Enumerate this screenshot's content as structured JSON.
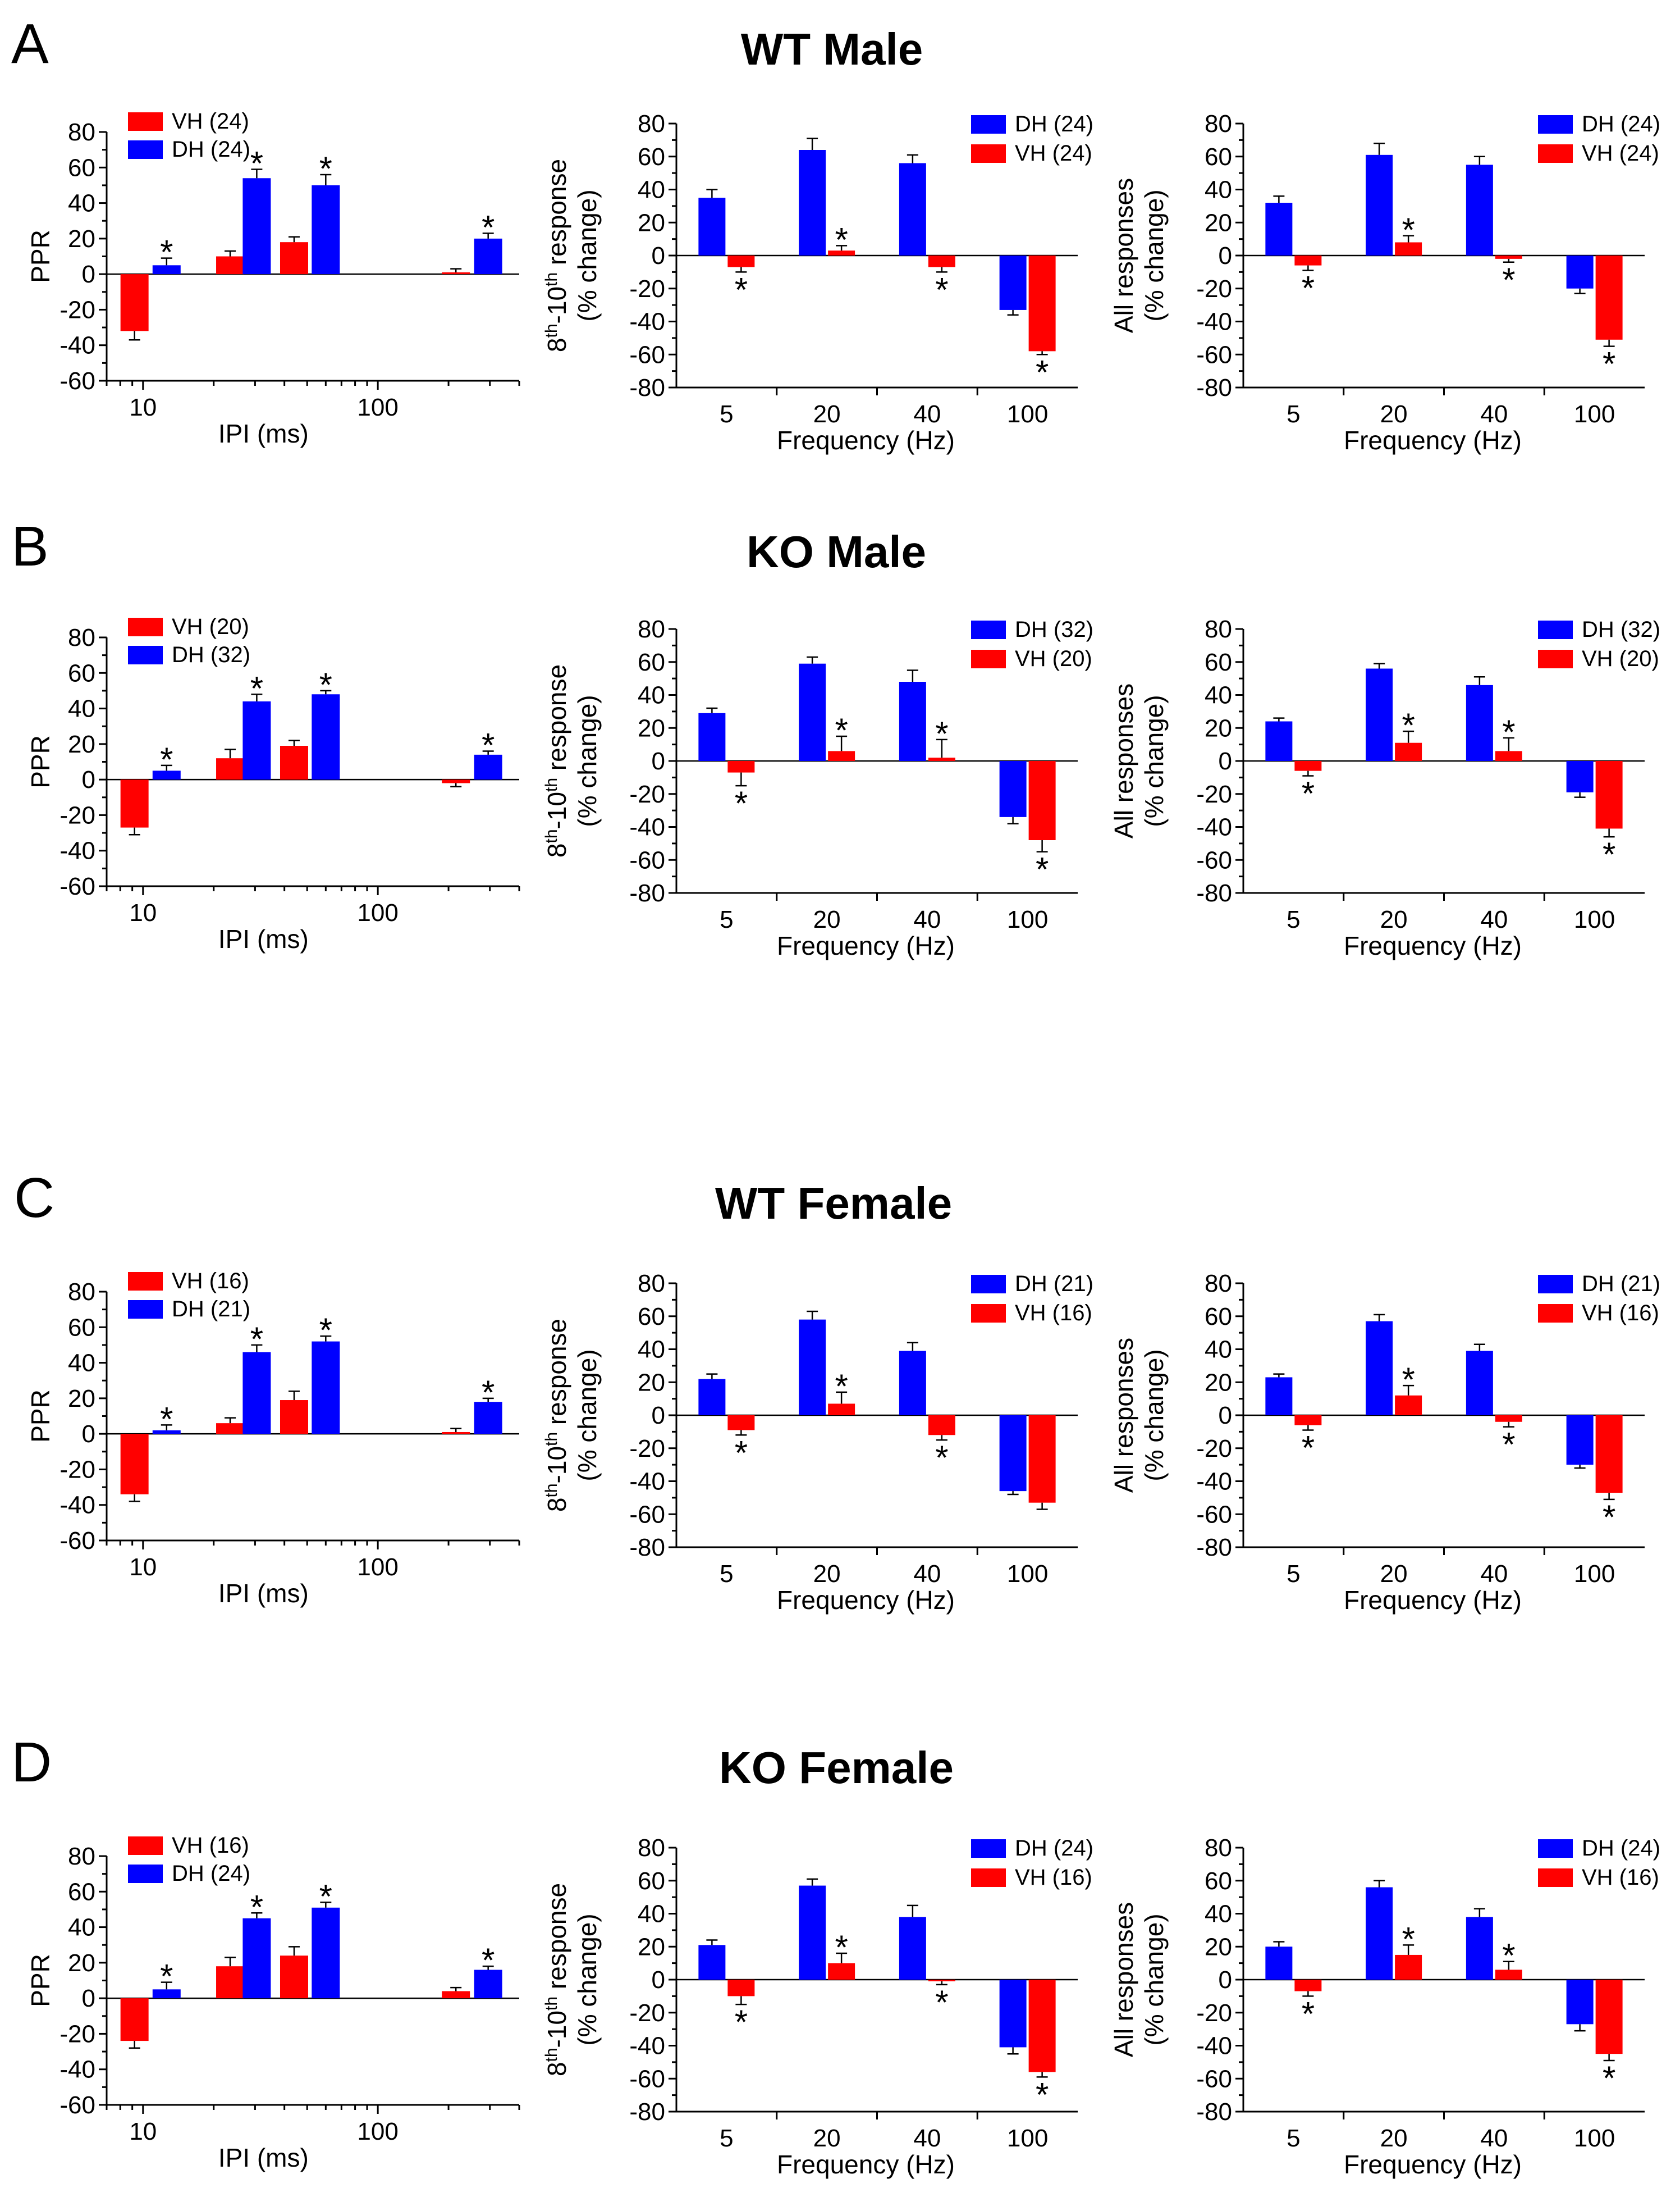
{
  "colors": {
    "DH": "#0000ff",
    "VH": "#ff0000",
    "axis": "#000000"
  },
  "axis_text": {
    "ppr_ylabel": "PPR",
    "ipi_xlabel": "IPI (ms)",
    "freq_xlabel": "Frequency (Hz)",
    "r810_ylabel_line1_prefix": "8",
    "r810_ylabel_line1_sup1": "th",
    "r810_ylabel_line1_mid": "-10",
    "r810_ylabel_line1_sup2": "th",
    "r810_ylabel_line1_suffix": " response",
    "r810_ylabel_line2": "(% change)",
    "all_ylabel_line1": "All responses",
    "all_ylabel_line2": "(% change)"
  },
  "groups": [
    {
      "letter": "A",
      "title": "WT Male",
      "ppr": {
        "legend": [
          {
            "series": "VH",
            "label": "VH (24)"
          },
          {
            "series": "DH",
            "label": "DH (24)"
          }
        ],
        "ylim": [
          -60,
          80
        ],
        "yticks": [
          -60,
          -40,
          -20,
          0,
          20,
          40,
          60,
          80
        ],
        "xlim": [
          7,
          400
        ],
        "xticks": [
          10,
          100
        ],
        "bars": [
          {
            "s": "VH",
            "x": 9.2,
            "v": -32,
            "err": 5,
            "star": false
          },
          {
            "s": "DH",
            "x": 12.6,
            "v": 5,
            "err": 4,
            "star": true
          },
          {
            "s": "VH",
            "x": 23.5,
            "v": 10,
            "err": 3,
            "star": false
          },
          {
            "s": "DH",
            "x": 30.5,
            "v": 54,
            "err": 5,
            "star": true
          },
          {
            "s": "VH",
            "x": 44,
            "v": 18,
            "err": 3,
            "star": false
          },
          {
            "s": "DH",
            "x": 60,
            "v": 50,
            "err": 6,
            "star": true
          },
          {
            "s": "VH",
            "x": 215,
            "v": 1,
            "err": 2,
            "star": false
          },
          {
            "s": "DH",
            "x": 295,
            "v": 20,
            "err": 3,
            "star": true
          }
        ]
      },
      "response_8_10": {
        "legend": [
          {
            "series": "DH",
            "label": "DH (24)"
          },
          {
            "series": "VH",
            "label": "VH (24)"
          }
        ],
        "ylim": [
          -80,
          80
        ],
        "yticks": [
          -80,
          -60,
          -40,
          -20,
          0,
          20,
          40,
          60,
          80
        ],
        "categories": [
          "5",
          "20",
          "40",
          "100"
        ],
        "series": [
          {
            "name": "DH",
            "values": [
              35,
              64,
              56,
              -33
            ],
            "err": [
              5,
              7,
              5,
              3
            ],
            "stars": [
              false,
              false,
              false,
              false
            ]
          },
          {
            "name": "VH",
            "values": [
              -7,
              3,
              -7,
              -58
            ],
            "err": [
              3,
              3,
              3,
              2
            ],
            "stars": [
              true,
              true,
              true,
              true
            ]
          }
        ]
      },
      "all_responses": {
        "legend": [
          {
            "series": "DH",
            "label": "DH (24)"
          },
          {
            "series": "VH",
            "label": "VH (24)"
          }
        ],
        "ylim": [
          -80,
          80
        ],
        "yticks": [
          -80,
          -60,
          -40,
          -20,
          0,
          20,
          40,
          60,
          80
        ],
        "categories": [
          "5",
          "20",
          "40",
          "100"
        ],
        "series": [
          {
            "name": "DH",
            "values": [
              32,
              61,
              55,
              -20
            ],
            "err": [
              4,
              7,
              5,
              3
            ],
            "stars": [
              false,
              false,
              false,
              false
            ]
          },
          {
            "name": "VH",
            "values": [
              -6,
              8,
              -2,
              -51
            ],
            "err": [
              3,
              4,
              2,
              4
            ],
            "stars": [
              true,
              true,
              true,
              true
            ]
          }
        ]
      }
    },
    {
      "letter": "B",
      "title": "KO Male",
      "ppr": {
        "legend": [
          {
            "series": "VH",
            "label": "VH (20)"
          },
          {
            "series": "DH",
            "label": "DH (32)"
          }
        ],
        "ylim": [
          -60,
          80
        ],
        "yticks": [
          -60,
          -40,
          -20,
          0,
          20,
          40,
          60,
          80
        ],
        "xlim": [
          7,
          400
        ],
        "xticks": [
          10,
          100
        ],
        "bars": [
          {
            "s": "VH",
            "x": 9.2,
            "v": -27,
            "err": 4,
            "star": false
          },
          {
            "s": "DH",
            "x": 12.6,
            "v": 5,
            "err": 3,
            "star": true
          },
          {
            "s": "VH",
            "x": 23.5,
            "v": 12,
            "err": 5,
            "star": false
          },
          {
            "s": "DH",
            "x": 30.5,
            "v": 44,
            "err": 4,
            "star": true
          },
          {
            "s": "VH",
            "x": 44,
            "v": 19,
            "err": 3,
            "star": false
          },
          {
            "s": "DH",
            "x": 60,
            "v": 48,
            "err": 2,
            "star": true
          },
          {
            "s": "VH",
            "x": 215,
            "v": -2,
            "err": 2,
            "star": false
          },
          {
            "s": "DH",
            "x": 295,
            "v": 14,
            "err": 2,
            "star": true
          }
        ]
      },
      "response_8_10": {
        "legend": [
          {
            "series": "DH",
            "label": "DH (32)"
          },
          {
            "series": "VH",
            "label": "VH (20)"
          }
        ],
        "ylim": [
          -80,
          80
        ],
        "yticks": [
          -80,
          -60,
          -40,
          -20,
          0,
          20,
          40,
          60,
          80
        ],
        "categories": [
          "5",
          "20",
          "40",
          "100"
        ],
        "series": [
          {
            "name": "DH",
            "values": [
              29,
              59,
              48,
              -34
            ],
            "err": [
              3,
              4,
              7,
              4
            ],
            "stars": [
              false,
              false,
              false,
              false
            ]
          },
          {
            "name": "VH",
            "values": [
              -7,
              6,
              2,
              -48
            ],
            "err": [
              8,
              9,
              11,
              7
            ],
            "stars": [
              true,
              true,
              true,
              true
            ]
          }
        ]
      },
      "all_responses": {
        "legend": [
          {
            "series": "DH",
            "label": "DH (32)"
          },
          {
            "series": "VH",
            "label": "VH (20)"
          }
        ],
        "ylim": [
          -80,
          80
        ],
        "yticks": [
          -80,
          -60,
          -40,
          -20,
          0,
          20,
          40,
          60,
          80
        ],
        "categories": [
          "5",
          "20",
          "40",
          "100"
        ],
        "series": [
          {
            "name": "DH",
            "values": [
              24,
              56,
              46,
              -19
            ],
            "err": [
              2,
              3,
              5,
              3
            ],
            "stars": [
              false,
              false,
              false,
              false
            ]
          },
          {
            "name": "VH",
            "values": [
              -6,
              11,
              6,
              -41
            ],
            "err": [
              3,
              7,
              8,
              5
            ],
            "stars": [
              true,
              true,
              true,
              true
            ]
          }
        ]
      }
    },
    {
      "letter": "C",
      "title": "WT Female",
      "ppr": {
        "legend": [
          {
            "series": "VH",
            "label": "VH (16)"
          },
          {
            "series": "DH",
            "label": "DH (21)"
          }
        ],
        "ylim": [
          -60,
          80
        ],
        "yticks": [
          -60,
          -40,
          -20,
          0,
          20,
          40,
          60,
          80
        ],
        "xlim": [
          7,
          400
        ],
        "xticks": [
          10,
          100
        ],
        "bars": [
          {
            "s": "VH",
            "x": 9.2,
            "v": -34,
            "err": 4,
            "star": false
          },
          {
            "s": "DH",
            "x": 12.6,
            "v": 2,
            "err": 3,
            "star": true
          },
          {
            "s": "VH",
            "x": 23.5,
            "v": 6,
            "err": 3,
            "star": false
          },
          {
            "s": "DH",
            "x": 30.5,
            "v": 46,
            "err": 4,
            "star": true
          },
          {
            "s": "VH",
            "x": 44,
            "v": 19,
            "err": 5,
            "star": false
          },
          {
            "s": "DH",
            "x": 60,
            "v": 52,
            "err": 3,
            "star": true
          },
          {
            "s": "VH",
            "x": 215,
            "v": 1,
            "err": 2,
            "star": false
          },
          {
            "s": "DH",
            "x": 295,
            "v": 18,
            "err": 2,
            "star": true
          }
        ]
      },
      "response_8_10": {
        "legend": [
          {
            "series": "DH",
            "label": "DH (21)"
          },
          {
            "series": "VH",
            "label": "VH (16)"
          }
        ],
        "ylim": [
          -80,
          80
        ],
        "yticks": [
          -80,
          -60,
          -40,
          -20,
          0,
          20,
          40,
          60,
          80
        ],
        "categories": [
          "5",
          "20",
          "40",
          "100"
        ],
        "series": [
          {
            "name": "DH",
            "values": [
              22,
              58,
              39,
              -46
            ],
            "err": [
              3,
              5,
              5,
              2
            ],
            "stars": [
              false,
              false,
              false,
              false
            ]
          },
          {
            "name": "VH",
            "values": [
              -9,
              7,
              -12,
              -53
            ],
            "err": [
              3,
              7,
              3,
              4
            ],
            "stars": [
              true,
              true,
              true,
              false
            ]
          }
        ]
      },
      "all_responses": {
        "legend": [
          {
            "series": "DH",
            "label": "DH (21)"
          },
          {
            "series": "VH",
            "label": "VH (16)"
          }
        ],
        "ylim": [
          -80,
          80
        ],
        "yticks": [
          -80,
          -60,
          -40,
          -20,
          0,
          20,
          40,
          60,
          80
        ],
        "categories": [
          "5",
          "20",
          "40",
          "100"
        ],
        "series": [
          {
            "name": "DH",
            "values": [
              23,
              57,
              39,
              -30
            ],
            "err": [
              2,
              4,
              4,
              2
            ],
            "stars": [
              false,
              false,
              false,
              false
            ]
          },
          {
            "name": "VH",
            "values": [
              -6,
              12,
              -4,
              -47
            ],
            "err": [
              3,
              6,
              3,
              4
            ],
            "stars": [
              true,
              true,
              true,
              true
            ]
          }
        ]
      }
    },
    {
      "letter": "D",
      "title": "KO Female",
      "ppr": {
        "legend": [
          {
            "series": "VH",
            "label": "VH (16)"
          },
          {
            "series": "DH",
            "label": "DH (24)"
          }
        ],
        "ylim": [
          -60,
          80
        ],
        "yticks": [
          -60,
          -40,
          -20,
          0,
          20,
          40,
          60,
          80
        ],
        "xlim": [
          7,
          400
        ],
        "xticks": [
          10,
          100
        ],
        "bars": [
          {
            "s": "VH",
            "x": 9.2,
            "v": -24,
            "err": 4,
            "star": false
          },
          {
            "s": "DH",
            "x": 12.6,
            "v": 5,
            "err": 4,
            "star": true
          },
          {
            "s": "VH",
            "x": 23.5,
            "v": 18,
            "err": 5,
            "star": false
          },
          {
            "s": "DH",
            "x": 30.5,
            "v": 45,
            "err": 3,
            "star": true
          },
          {
            "s": "VH",
            "x": 44,
            "v": 24,
            "err": 5,
            "star": false
          },
          {
            "s": "DH",
            "x": 60,
            "v": 51,
            "err": 3,
            "star": true
          },
          {
            "s": "VH",
            "x": 215,
            "v": 4,
            "err": 2,
            "star": false
          },
          {
            "s": "DH",
            "x": 295,
            "v": 16,
            "err": 2,
            "star": true
          }
        ]
      },
      "response_8_10": {
        "legend": [
          {
            "series": "DH",
            "label": "DH (24)"
          },
          {
            "series": "VH",
            "label": "VH (16)"
          }
        ],
        "ylim": [
          -80,
          80
        ],
        "yticks": [
          -80,
          -60,
          -40,
          -20,
          0,
          20,
          40,
          60,
          80
        ],
        "categories": [
          "5",
          "20",
          "40",
          "100"
        ],
        "series": [
          {
            "name": "DH",
            "values": [
              21,
              57,
              38,
              -41
            ],
            "err": [
              3,
              4,
              7,
              4
            ],
            "stars": [
              false,
              false,
              false,
              false
            ]
          },
          {
            "name": "VH",
            "values": [
              -10,
              10,
              -1,
              -56
            ],
            "err": [
              5,
              6,
              2,
              3
            ],
            "stars": [
              true,
              true,
              true,
              true
            ]
          }
        ]
      },
      "all_responses": {
        "legend": [
          {
            "series": "DH",
            "label": "DH (24)"
          },
          {
            "series": "VH",
            "label": "VH (16)"
          }
        ],
        "ylim": [
          -80,
          80
        ],
        "yticks": [
          -80,
          -60,
          -40,
          -20,
          0,
          20,
          40,
          60,
          80
        ],
        "categories": [
          "5",
          "20",
          "40",
          "100"
        ],
        "series": [
          {
            "name": "DH",
            "values": [
              20,
              56,
              38,
              -27
            ],
            "err": [
              3,
              4,
              5,
              4
            ],
            "stars": [
              false,
              false,
              false,
              false
            ]
          },
          {
            "name": "VH",
            "values": [
              -7,
              15,
              6,
              -45
            ],
            "err": [
              3,
              6,
              5,
              4
            ],
            "stars": [
              true,
              true,
              true,
              true
            ]
          }
        ]
      }
    }
  ]
}
